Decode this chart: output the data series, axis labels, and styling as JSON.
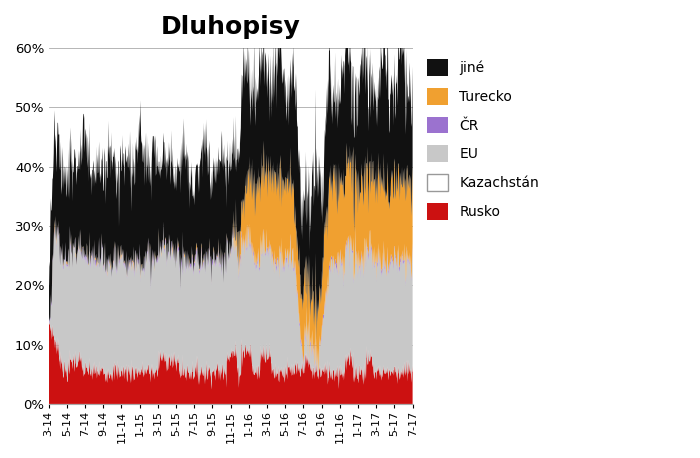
{
  "title": "Dluhopisy",
  "title_fontsize": 18,
  "title_fontweight": "bold",
  "ylim": [
    0.0,
    0.6
  ],
  "yticks": [
    0.0,
    0.1,
    0.2,
    0.3,
    0.4,
    0.5,
    0.6
  ],
  "ytick_labels": [
    "0%",
    "10%",
    "20%",
    "30%",
    "40%",
    "50%",
    "60%"
  ],
  "xtick_labels": [
    "3-14",
    "5-14",
    "7-14",
    "9-14",
    "11-14",
    "1-15",
    "3-15",
    "5-15",
    "7-15",
    "9-15",
    "11-15",
    "1-16",
    "3-16",
    "5-16",
    "7-16",
    "9-16",
    "11-16",
    "1-17",
    "3-17",
    "5-17",
    "7-17"
  ],
  "legend_labels": [
    "jiné",
    "Turecko",
    "ČR",
    "EU",
    "Kazachstán",
    "Rusko"
  ],
  "legend_colors": [
    "#111111",
    "#f0a030",
    "#9b72cf",
    "#c8c8c8",
    "#ffffff",
    "#cc1111"
  ],
  "stack_colors": [
    "#cc1111",
    "#ffffff",
    "#c8c8c8",
    "#9b72cf",
    "#f0a030",
    "#111111"
  ],
  "background": "#ffffff",
  "grid_color": "#aaaaaa",
  "n_points": 860
}
